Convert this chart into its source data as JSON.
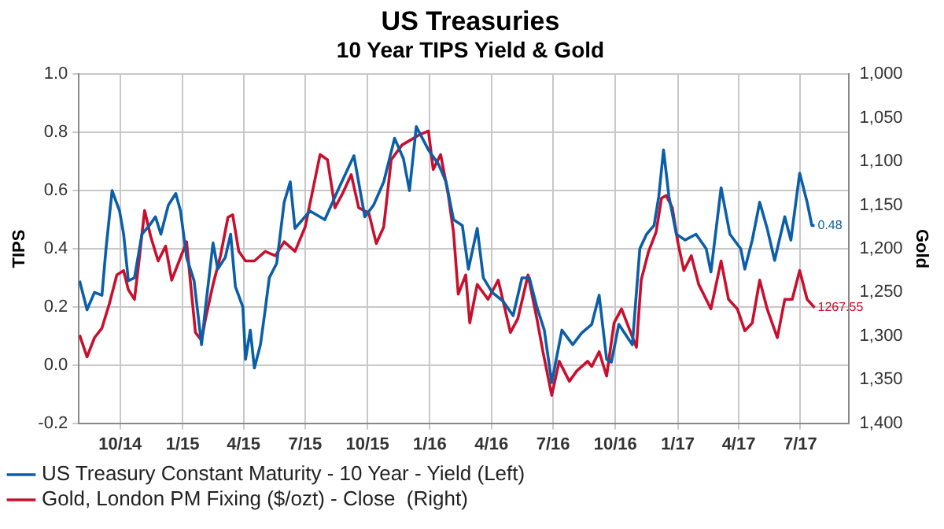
{
  "chart_data": {
    "type": "line",
    "title": "US Treasuries",
    "subtitle": "10 Year TIPS Yield & Gold",
    "ylabel": "TIPS",
    "y2label": "Gold",
    "xlim": [
      "2014-08-01",
      "2017-09-10"
    ],
    "xticks": [
      {
        "value": "2014-10-01",
        "label": "10/14"
      },
      {
        "value": "2015-01-01",
        "label": "1/15"
      },
      {
        "value": "2015-04-01",
        "label": "4/15"
      },
      {
        "value": "2015-07-01",
        "label": "7/15"
      },
      {
        "value": "2015-10-01",
        "label": "10/15"
      },
      {
        "value": "2016-01-01",
        "label": "1/16"
      },
      {
        "value": "2016-04-01",
        "label": "4/16"
      },
      {
        "value": "2016-07-01",
        "label": "7/16"
      },
      {
        "value": "2016-10-01",
        "label": "10/16"
      },
      {
        "value": "2017-01-01",
        "label": "1/17"
      },
      {
        "value": "2017-04-01",
        "label": "4/17"
      },
      {
        "value": "2017-07-01",
        "label": "7/17"
      }
    ],
    "ylim": [
      -0.2,
      1.0
    ],
    "yticks": [
      -0.2,
      {
        "value": 0,
        "label": "0.0"
      },
      0.2,
      0.4,
      0.6,
      0.8,
      {
        "value": 1,
        "label": "1.0"
      }
    ],
    "y2lim": [
      1400,
      1000
    ],
    "y2ticks": [
      {
        "value": 1000,
        "label": "1,000"
      },
      {
        "value": 1050,
        "label": "1,050"
      },
      {
        "value": 1100,
        "label": "1,100"
      },
      {
        "value": 1150,
        "label": "1,150"
      },
      {
        "value": 1200,
        "label": "1,200"
      },
      {
        "value": 1250,
        "label": "1,250"
      },
      {
        "value": 1300,
        "label": "1,300"
      },
      {
        "value": 1350,
        "label": "1,350"
      },
      {
        "value": 1400,
        "label": "1,400"
      }
    ],
    "grid": true,
    "legend": "bottom",
    "marker": "none",
    "line_style": "solid",
    "series": [
      {
        "name": "US Treasury Constant Maturity - 10 Year - Yield (Left)",
        "color": "#0b5ea8",
        "x": [
          "2014-08-02",
          "2014-08-13",
          "2014-08-24",
          "2014-09-04",
          "2014-09-10",
          "2014-09-19",
          "2014-09-30",
          "2014-10-06",
          "2014-10-13",
          "2014-10-22",
          "2014-11-02",
          "2014-11-13",
          "2014-11-22",
          "2014-11-30",
          "2014-12-11",
          "2014-12-22",
          "2014-12-29",
          "2015-01-07",
          "2015-01-18",
          "2015-01-29",
          "2015-02-04",
          "2015-02-15",
          "2015-02-22",
          "2015-03-05",
          "2015-03-13",
          "2015-03-20",
          "2015-03-31",
          "2015-04-04",
          "2015-04-11",
          "2015-04-17",
          "2015-04-26",
          "2015-05-03",
          "2015-05-09",
          "2015-05-20",
          "2015-05-31",
          "2015-06-09",
          "2015-06-16",
          "2015-07-08",
          "2015-07-30",
          "2015-08-20",
          "2015-09-11",
          "2015-09-27",
          "2015-10-10",
          "2015-10-25",
          "2015-11-10",
          "2015-11-23",
          "2015-12-02",
          "2015-12-12",
          "2015-12-30",
          "2016-01-14",
          "2016-01-25",
          "2016-02-05",
          "2016-02-18",
          "2016-02-27",
          "2016-03-11",
          "2016-03-20",
          "2016-04-02",
          "2016-04-18",
          "2016-05-03",
          "2016-05-16",
          "2016-05-27",
          "2016-06-07",
          "2016-06-18",
          "2016-06-29",
          "2016-07-14",
          "2016-07-30",
          "2016-08-12",
          "2016-08-27",
          "2016-09-07",
          "2016-09-18",
          "2016-09-25",
          "2016-10-06",
          "2016-10-26",
          "2016-11-06",
          "2016-11-16",
          "2016-11-27",
          "2016-12-04",
          "2016-12-11",
          "2016-12-19",
          "2016-12-30",
          "2017-01-12",
          "2017-01-28",
          "2017-02-12",
          "2017-02-19",
          "2017-03-06",
          "2017-03-19",
          "2017-04-04",
          "2017-04-10",
          "2017-04-21",
          "2017-05-02",
          "2017-05-13",
          "2017-05-24",
          "2017-06-08",
          "2017-06-17",
          "2017-06-30",
          "2017-07-11",
          "2017-07-18",
          "2017-07-22"
        ],
        "values": [
          0.29,
          0.19,
          0.25,
          0.24,
          0.4,
          0.6,
          0.53,
          0.45,
          0.29,
          0.3,
          0.45,
          0.48,
          0.51,
          0.45,
          0.55,
          0.59,
          0.53,
          0.37,
          0.29,
          0.07,
          0.2,
          0.42,
          0.33,
          0.37,
          0.45,
          0.27,
          0.2,
          0.02,
          0.12,
          -0.01,
          0.07,
          0.19,
          0.3,
          0.35,
          0.56,
          0.63,
          0.47,
          0.53,
          0.5,
          0.61,
          0.72,
          0.51,
          0.55,
          0.63,
          0.78,
          0.71,
          0.6,
          0.82,
          0.74,
          0.69,
          0.63,
          0.5,
          0.48,
          0.33,
          0.47,
          0.3,
          0.25,
          0.22,
          0.17,
          0.3,
          0.3,
          0.2,
          0.12,
          -0.06,
          0.12,
          0.07,
          0.11,
          0.14,
          0.24,
          0.02,
          0.01,
          0.14,
          0.07,
          0.4,
          0.45,
          0.48,
          0.58,
          0.74,
          0.58,
          0.45,
          0.43,
          0.45,
          0.4,
          0.32,
          0.61,
          0.45,
          0.4,
          0.33,
          0.43,
          0.56,
          0.47,
          0.36,
          0.51,
          0.43,
          0.66,
          0.56,
          0.48,
          0.48
        ],
        "value_labels": [
          null,
          null,
          null,
          null,
          null,
          null,
          null,
          null,
          null,
          null,
          null,
          null,
          null,
          null,
          null,
          null,
          null,
          null,
          null,
          null,
          null,
          null,
          null,
          null,
          null,
          null,
          null,
          null,
          null,
          null,
          null,
          null,
          null,
          null,
          null,
          null,
          null,
          null,
          null,
          null,
          null,
          null,
          null,
          null,
          null,
          null,
          null,
          null,
          null,
          null,
          null,
          null,
          null,
          null,
          null,
          null,
          null,
          null,
          null,
          null,
          null,
          null,
          null,
          null,
          null,
          null,
          null,
          null,
          null,
          null,
          null,
          null,
          null,
          null,
          null,
          null,
          null,
          null,
          null,
          null,
          null,
          null,
          null,
          null,
          null,
          null,
          null,
          null,
          null,
          null,
          null,
          null,
          null,
          null,
          null,
          null,
          null,
          "0.48"
        ]
      },
      {
        "name": "Gold, London PM Fixing ($/ozt) - Close  (Right)",
        "color": "#c8102e",
        "axis": "y2",
        "x": [
          "2014-08-02",
          "2014-08-13",
          "2014-08-24",
          "2014-09-04",
          "2014-09-15",
          "2014-09-26",
          "2014-10-06",
          "2014-10-13",
          "2014-10-22",
          "2014-10-28",
          "2014-11-06",
          "2014-11-15",
          "2014-11-26",
          "2014-12-07",
          "2014-12-16",
          "2014-12-27",
          "2015-01-07",
          "2015-01-13",
          "2015-01-20",
          "2015-01-29",
          "2015-02-04",
          "2015-02-15",
          "2015-02-26",
          "2015-03-09",
          "2015-03-16",
          "2015-03-25",
          "2015-04-04",
          "2015-04-17",
          "2015-05-03",
          "2015-05-18",
          "2015-05-31",
          "2015-06-16",
          "2015-07-01",
          "2015-07-14",
          "2015-07-23",
          "2015-08-03",
          "2015-08-14",
          "2015-08-25",
          "2015-09-07",
          "2015-09-18",
          "2015-10-03",
          "2015-10-14",
          "2015-10-25",
          "2015-11-05",
          "2015-11-21",
          "2015-12-02",
          "2015-12-15",
          "2015-12-30",
          "2016-01-06",
          "2016-01-17",
          "2016-01-28",
          "2016-02-05",
          "2016-02-12",
          "2016-02-23",
          "2016-02-29",
          "2016-03-11",
          "2016-03-27",
          "2016-04-11",
          "2016-04-29",
          "2016-05-10",
          "2016-05-25",
          "2016-06-07",
          "2016-06-16",
          "2016-06-29",
          "2016-07-10",
          "2016-07-25",
          "2016-08-05",
          "2016-08-21",
          "2016-08-27",
          "2016-09-07",
          "2016-09-18",
          "2016-09-29",
          "2016-10-10",
          "2016-10-21",
          "2016-11-01",
          "2016-11-08",
          "2016-11-19",
          "2016-11-30",
          "2016-12-08",
          "2016-12-15",
          "2016-12-24",
          "2017-01-01",
          "2017-01-10",
          "2017-01-21",
          "2017-02-01",
          "2017-02-19",
          "2017-03-06",
          "2017-03-17",
          "2017-03-30",
          "2017-04-10",
          "2017-04-21",
          "2017-05-02",
          "2017-05-13",
          "2017-05-28",
          "2017-06-08",
          "2017-06-19",
          "2017-06-30",
          "2017-07-11",
          "2017-07-22"
        ],
        "values": [
          1299,
          1324,
          1302,
          1291,
          1263,
          1230,
          1225,
          1247,
          1258,
          1219,
          1156,
          1186,
          1214,
          1197,
          1236,
          1214,
          1192,
          1241,
          1296,
          1305,
          1280,
          1241,
          1208,
          1164,
          1161,
          1203,
          1214,
          1214,
          1203,
          1208,
          1192,
          1203,
          1175,
          1126,
          1092,
          1098,
          1153,
          1137,
          1115,
          1153,
          1159,
          1194,
          1175,
          1098,
          1081,
          1076,
          1070,
          1065,
          1109,
          1092,
          1137,
          1181,
          1252,
          1230,
          1285,
          1241,
          1258,
          1236,
          1296,
          1280,
          1230,
          1280,
          1318,
          1368,
          1329,
          1352,
          1340,
          1329,
          1335,
          1318,
          1346,
          1285,
          1269,
          1291,
          1313,
          1236,
          1203,
          1181,
          1142,
          1139,
          1153,
          1192,
          1225,
          1208,
          1241,
          1269,
          1214,
          1258,
          1269,
          1294,
          1285,
          1236,
          1269,
          1302,
          1258,
          1258,
          1225,
          1258,
          1267.55
        ],
        "value_labels": [
          null,
          null,
          null,
          null,
          null,
          null,
          null,
          null,
          null,
          null,
          null,
          null,
          null,
          null,
          null,
          null,
          null,
          null,
          null,
          null,
          null,
          null,
          null,
          null,
          null,
          null,
          null,
          null,
          null,
          null,
          null,
          null,
          null,
          null,
          null,
          null,
          null,
          null,
          null,
          null,
          null,
          null,
          null,
          null,
          null,
          null,
          null,
          null,
          null,
          null,
          null,
          null,
          null,
          null,
          null,
          null,
          null,
          null,
          null,
          null,
          null,
          null,
          null,
          null,
          null,
          null,
          null,
          null,
          null,
          null,
          null,
          null,
          null,
          null,
          null,
          null,
          null,
          null,
          null,
          null,
          null,
          null,
          null,
          null,
          null,
          null,
          null,
          null,
          null,
          null,
          null,
          null,
          null,
          null,
          null,
          null,
          null,
          null,
          "1267.55"
        ]
      }
    ]
  }
}
